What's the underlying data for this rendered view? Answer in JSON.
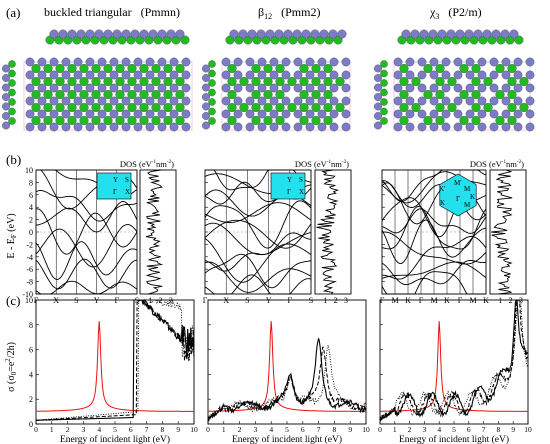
{
  "panel_labels": [
    "(a)",
    "(b)",
    "(c)"
  ],
  "structures": [
    {
      "name": "buckled triangular",
      "group": "(Pmmn)"
    },
    {
      "name": "β",
      "sub": "12",
      "group": "(Pmm2)"
    },
    {
      "name": "χ",
      "sub": "3",
      "group": "(P2/m)"
    }
  ],
  "colors": {
    "atom_violet": "#7b7bc6",
    "atom_green": "#22b922",
    "bond_gray": "#aaaaaa",
    "bz_cyan": "#22e0ee",
    "optical_red": "#ee1111",
    "cell_pink": "#f0a8c8"
  },
  "band_plots": {
    "ylabel": "E - E",
    "ylabel_sub": "F",
    "ylabel_unit": "(eV)",
    "yticks": [
      "10",
      "8",
      "6",
      "4",
      "2",
      "0",
      "-2",
      "-4",
      "-6",
      "-8",
      "-10"
    ],
    "dos_label": "DOS (eV",
    "dos_sup1": "-1",
    "dos_mid": "nm",
    "dos_sup2": "-2",
    "dos_close": ")",
    "dos_ticks": [
      "1",
      "2",
      "3"
    ],
    "kpaths": [
      [
        "Γ",
        "X",
        "S",
        "Y",
        "Γ",
        "S"
      ],
      [
        "Γ",
        "X",
        "S",
        "Y",
        "Γ",
        "S"
      ],
      [
        "Γ",
        "M",
        "K",
        "Γ",
        "M",
        "K",
        "Γ",
        "M",
        "K"
      ]
    ],
    "bz_labels": [
      [
        "Y",
        "S",
        "Γ",
        "X"
      ],
      [
        "Y",
        "S",
        "Γ",
        "X"
      ],
      [
        "M'",
        "K'",
        "M",
        "K",
        "Γ",
        "M",
        "K"
      ]
    ]
  },
  "optical": {
    "ylabel_pre": "σ (σ",
    "ylabel_sub": "0",
    "ylabel_mid": "=e",
    "ylabel_sup": "2",
    "ylabel_post": "/2h)",
    "yticks": [
      "0",
      "2",
      "4",
      "6",
      "8",
      "10"
    ],
    "xticks": [
      "0",
      "1",
      "2",
      "3",
      "4",
      "5",
      "6",
      "7",
      "8",
      "9",
      "10"
    ],
    "xlabel": "Energy of incident light (eV)"
  }
}
